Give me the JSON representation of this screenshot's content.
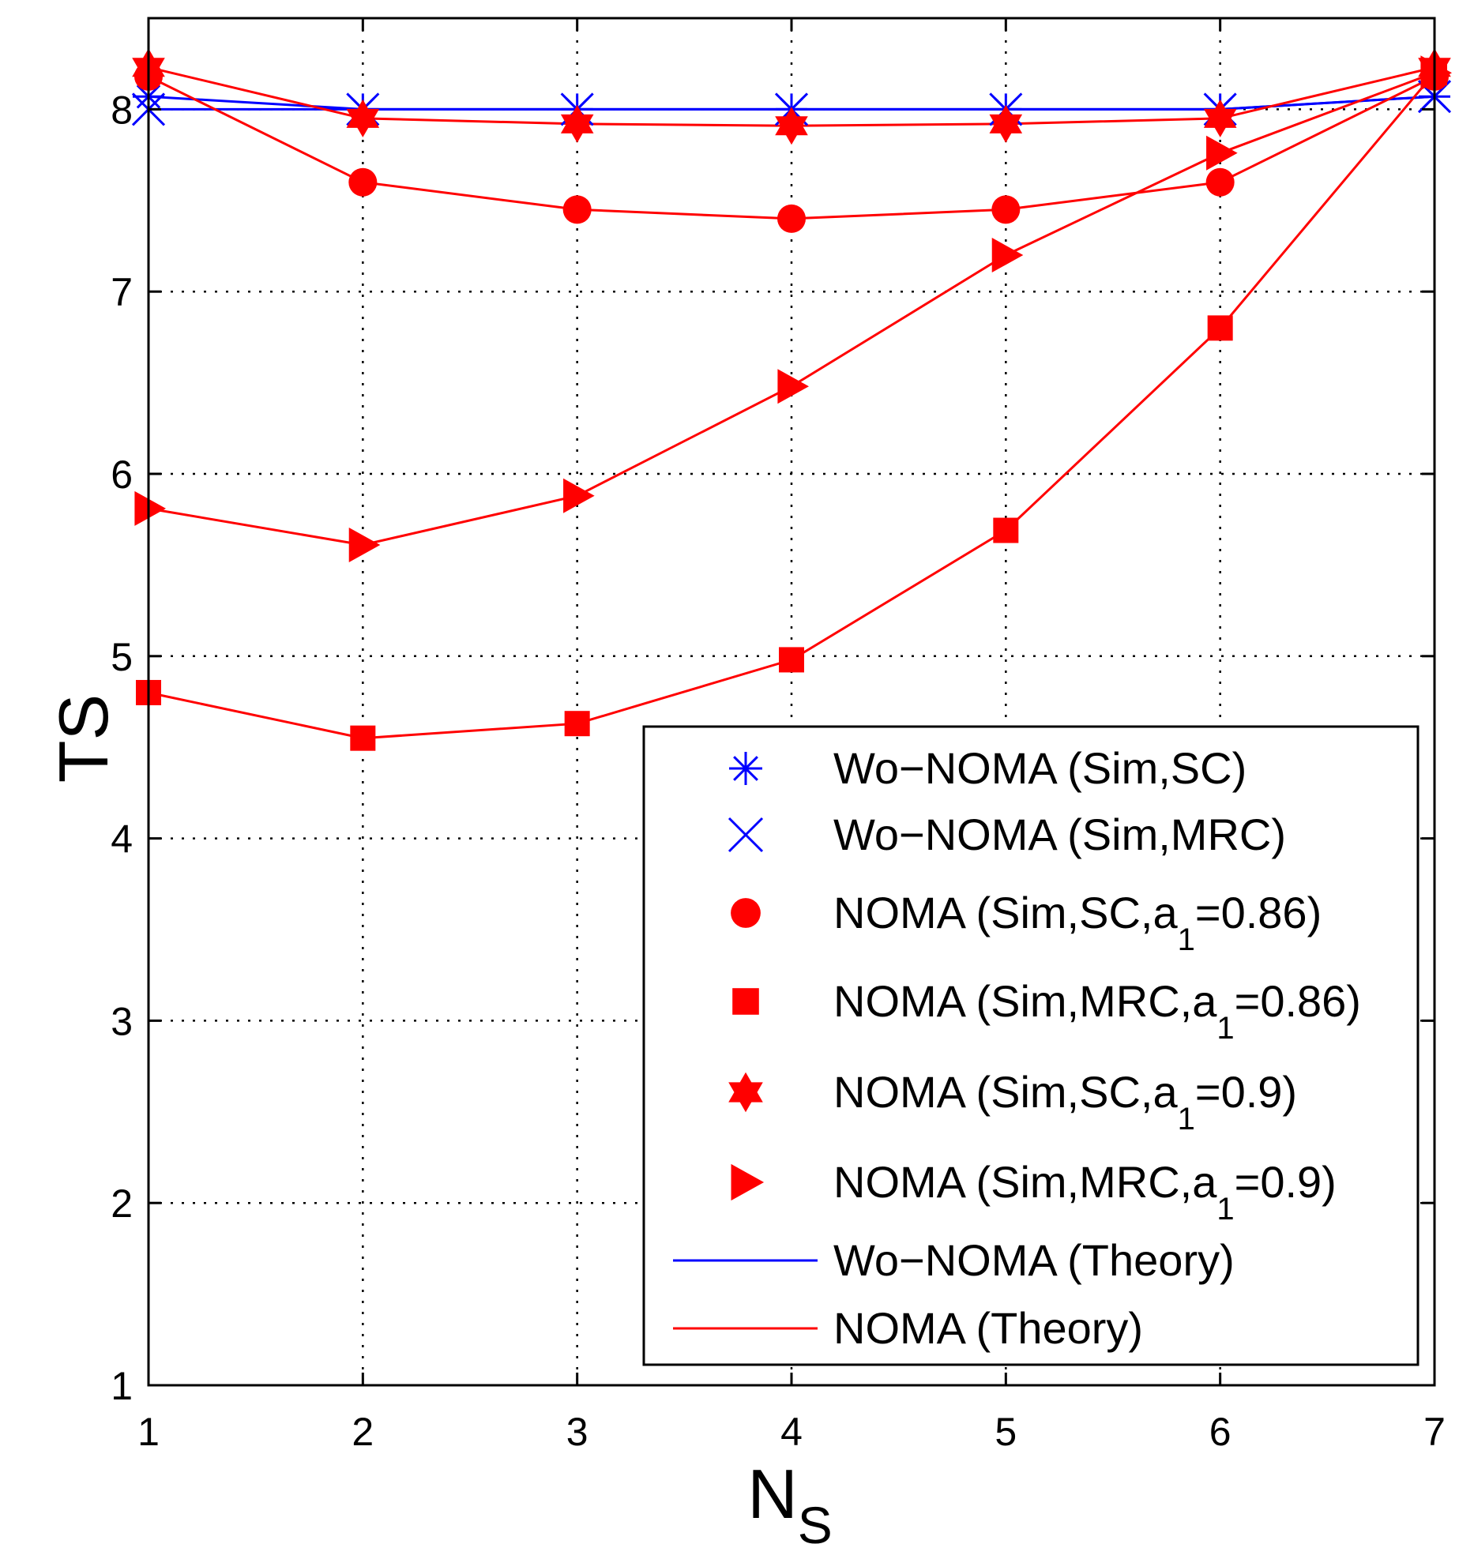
{
  "chart_data": {
    "type": "line",
    "title": "",
    "xlabel": "N",
    "xlabel_subscript": "S",
    "ylabel": "TS",
    "xlim": [
      1,
      7
    ],
    "ylim": [
      1,
      8.5
    ],
    "xticks": [
      1,
      2,
      3,
      4,
      5,
      6,
      7
    ],
    "yticks": [
      1,
      2,
      3,
      4,
      5,
      6,
      7,
      8
    ],
    "grid": true,
    "legend_position": "bottom-right",
    "x": [
      1,
      2,
      3,
      4,
      5,
      6,
      7
    ],
    "series": [
      {
        "name": "Wo−NOMA (Sim,SC)",
        "label_main": "Wo−NOMA (Sim,SC)",
        "label_sub": "",
        "label_tail": "",
        "marker": "asterisk",
        "line": false,
        "color": "#0000ff",
        "values": [
          8.07,
          8.0,
          8.0,
          8.0,
          8.0,
          8.0,
          8.07
        ]
      },
      {
        "name": "Wo−NOMA (Sim,MRC)",
        "label_main": "Wo−NOMA (Sim,MRC)",
        "label_sub": "",
        "label_tail": "",
        "marker": "x",
        "line": false,
        "color": "#0000ff",
        "values": [
          8.0,
          8.0,
          8.0,
          8.0,
          8.0,
          8.0,
          8.07
        ]
      },
      {
        "name": "NOMA (Sim,SC,a1=0.86)",
        "label_main": "NOMA (Sim,SC,a",
        "label_sub": "1",
        "label_tail": "=0.86)",
        "marker": "circle",
        "line": false,
        "color": "#ff0000",
        "values": [
          8.18,
          7.6,
          7.45,
          7.4,
          7.45,
          7.6,
          8.18
        ]
      },
      {
        "name": "NOMA (Sim,MRC,a1=0.86)",
        "label_main": "NOMA (Sim,MRC,a",
        "label_sub": "1",
        "label_tail": "=0.86)",
        "marker": "square",
        "line": false,
        "color": "#ff0000",
        "values": [
          4.8,
          4.55,
          4.63,
          4.98,
          5.69,
          6.8,
          8.2
        ]
      },
      {
        "name": "NOMA (Sim,SC,a1=0.9)",
        "label_main": "NOMA (Sim,SC,a",
        "label_sub": "1",
        "label_tail": "=0.9)",
        "marker": "hexagram",
        "line": false,
        "color": "#ff0000",
        "values": [
          8.23,
          7.95,
          7.92,
          7.91,
          7.92,
          7.95,
          8.23
        ]
      },
      {
        "name": "NOMA (Sim,MRC,a1=0.9)",
        "label_main": "NOMA (Sim,MRC,a",
        "label_sub": "1",
        "label_tail": "=0.9)",
        "marker": "triangle-right",
        "line": false,
        "color": "#ff0000",
        "values": [
          5.81,
          5.61,
          5.88,
          6.48,
          7.2,
          7.76,
          8.2
        ]
      },
      {
        "name": "Wo−NOMA (Theory)",
        "label_main": "Wo−NOMA (Theory)",
        "label_sub": "",
        "label_tail": "",
        "marker": "none",
        "line": true,
        "color": "#0000ff",
        "theory_curves": [
          [
            8.07,
            8.0,
            8.0,
            8.0,
            8.0,
            8.0,
            8.07
          ],
          [
            8.0,
            8.0,
            8.0,
            8.0,
            8.0,
            8.0,
            8.07
          ]
        ]
      },
      {
        "name": "NOMA (Theory)",
        "label_main": "NOMA (Theory)",
        "label_sub": "",
        "label_tail": "",
        "marker": "none",
        "line": true,
        "color": "#ff0000",
        "theory_curves": [
          [
            8.18,
            7.6,
            7.45,
            7.4,
            7.45,
            7.6,
            8.18
          ],
          [
            4.8,
            4.55,
            4.63,
            4.98,
            5.69,
            6.8,
            8.2
          ],
          [
            8.23,
            7.95,
            7.92,
            7.91,
            7.92,
            7.95,
            8.23
          ],
          [
            5.81,
            5.61,
            5.88,
            6.48,
            7.2,
            7.76,
            8.2
          ]
        ]
      }
    ]
  }
}
